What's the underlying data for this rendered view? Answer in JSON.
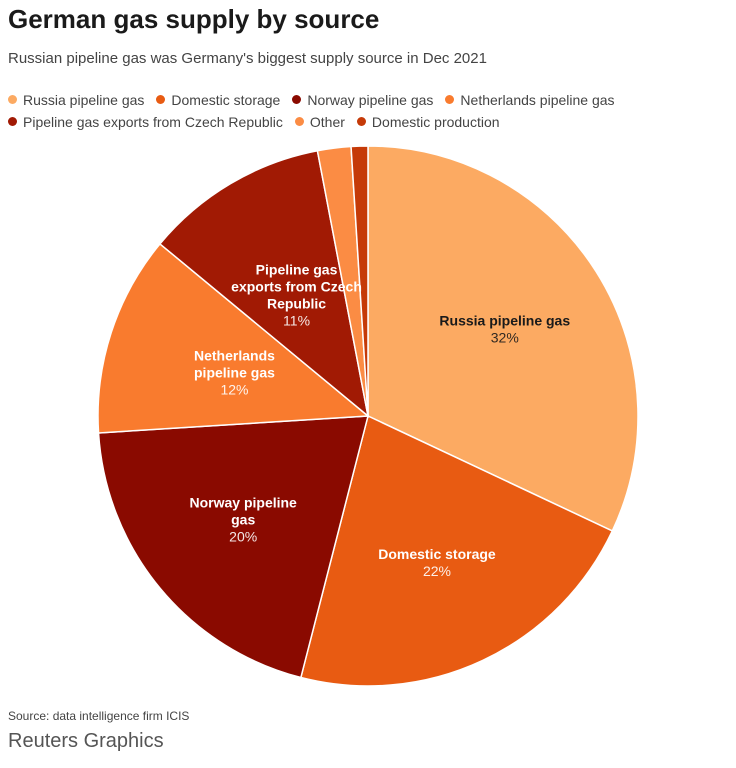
{
  "header": {
    "title": "German gas supply by source",
    "subtitle": "Russian pipeline gas was Germany's biggest supply source in Dec 2021"
  },
  "footer": {
    "source": "Source: data intelligence firm ICIS",
    "brand": "Reuters Graphics"
  },
  "chart_data": {
    "type": "pie",
    "title": "German gas supply by source",
    "subtitle": "Russian pipeline gas was Germany's biggest supply source in Dec 2021",
    "legend_position": "top",
    "slices": [
      {
        "name": "Russia pipeline gas",
        "value": 32,
        "label_lines": [
          "Russia pipeline gas"
        ],
        "pct_label": "32%",
        "color": "#fcaa62",
        "text_color": "#1a1a1a"
      },
      {
        "name": "Domestic storage",
        "value": 22,
        "label_lines": [
          "Domestic storage"
        ],
        "pct_label": "22%",
        "color": "#e85b12",
        "text_color": "#ffffff"
      },
      {
        "name": "Norway pipeline gas",
        "value": 20,
        "label_lines": [
          "Norway pipeline",
          "gas"
        ],
        "pct_label": "20%",
        "color": "#8a0a00",
        "text_color": "#ffffff"
      },
      {
        "name": "Netherlands pipeline gas",
        "value": 12,
        "label_lines": [
          "Netherlands",
          "pipeline gas"
        ],
        "pct_label": "12%",
        "color": "#f97b2e",
        "text_color": "#ffffff"
      },
      {
        "name": "Pipeline gas exports from Czech Republic",
        "value": 11,
        "label_lines": [
          "Pipeline gas",
          "exports from Czech",
          "Republic"
        ],
        "pct_label": "11%",
        "color": "#a11a04",
        "text_color": "#ffffff"
      },
      {
        "name": "Other",
        "value": 2,
        "label_lines": [],
        "pct_label": "",
        "color": "#fb8c44",
        "text_color": "#ffffff"
      },
      {
        "name": "Domestic production",
        "value": 1,
        "label_lines": [],
        "pct_label": "",
        "color": "#c53a08",
        "text_color": "#ffffff"
      }
    ]
  }
}
